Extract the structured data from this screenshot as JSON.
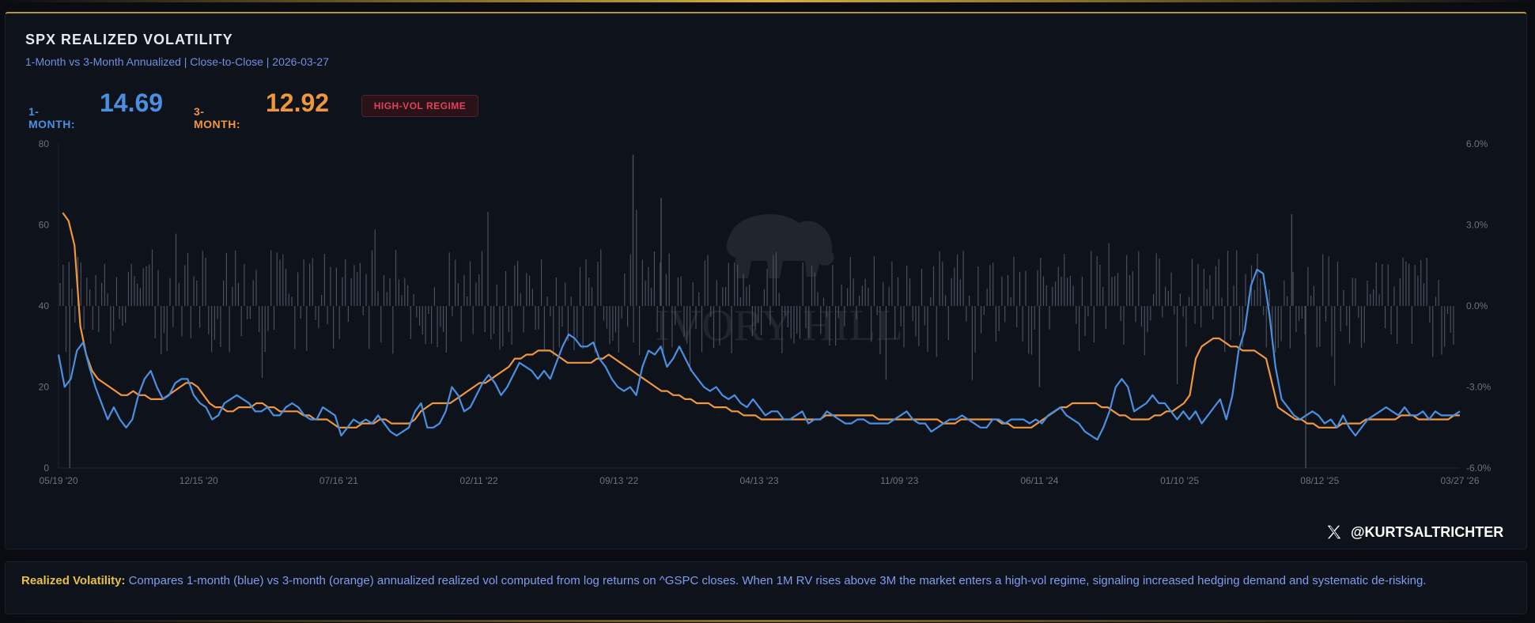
{
  "header": {
    "title": "SPX REALIZED VOLATILITY",
    "subtitle": "1-Month vs 3-Month Annualized | Close-to-Close | 2026-03-27"
  },
  "stats": {
    "one_month_label": "1-MONTH:",
    "one_month_value": "14.69",
    "three_month_label": "3-MONTH:",
    "three_month_value": "12.92",
    "regime_badge": "HIGH-VOL REGIME"
  },
  "watermark": {
    "text": "IVORY HILL"
  },
  "handle": {
    "text": "@KURTSALTRICHTER",
    "icon": "x-logo-icon"
  },
  "footer": {
    "lead": "Realized Volatility:",
    "text": "Compares 1-month (blue) vs 3-month (orange) annualized realized vol computed from log returns on ^GSPC closes. When 1M RV rises above 3M the market enters a high-vol regime, signaling increased hedging demand and systematic de-risking."
  },
  "colors": {
    "one_month": "#4a90e2",
    "three_month": "#f0963c",
    "badge": "#e0415c",
    "accent": "#e8c23a"
  },
  "chart_data": {
    "type": "line",
    "x_tick_labels": [
      "05/19 '20",
      "12/15 '20",
      "07/16 '21",
      "02/11 '22",
      "09/13 '22",
      "04/13 '23",
      "11/09 '23",
      "06/11 '24",
      "01/10 '25",
      "08/12 '25",
      "03/27 '26"
    ],
    "ylim": [
      0,
      80
    ],
    "y_ticks": [
      0,
      20,
      40,
      60,
      80
    ],
    "y2lim": [
      -6.0,
      6.0
    ],
    "y2_ticks": [
      "6.0%",
      "3.0%",
      "0.0%",
      "-3.0%",
      "-6.0%"
    ],
    "y2_tick_values": [
      6,
      3,
      0,
      -3,
      -6
    ],
    "grid": false,
    "series": [
      {
        "name": "1-MONTH",
        "color": "#4a90e2",
        "values": [
          28,
          20,
          22,
          29,
          31,
          25,
          20,
          16,
          12,
          15,
          12,
          10,
          12,
          18,
          22,
          24,
          20,
          17,
          18,
          21,
          22,
          22,
          18,
          16,
          15,
          12,
          13,
          16,
          17,
          18,
          17,
          16,
          14,
          14,
          15,
          13,
          13,
          15,
          16,
          15,
          13,
          12,
          12,
          15,
          14,
          13,
          8,
          10,
          12,
          11,
          12,
          11,
          13,
          11,
          9,
          8,
          9,
          10,
          14,
          16,
          10,
          10,
          11,
          14,
          20,
          18,
          14,
          15,
          18,
          21,
          23,
          21,
          18,
          20,
          23,
          26,
          25,
          24,
          22,
          24,
          22,
          26,
          30,
          33,
          32,
          30,
          30,
          31,
          27,
          25,
          22,
          20,
          19,
          20,
          18,
          25,
          29,
          28,
          30,
          25,
          27,
          30,
          27,
          24,
          22,
          20,
          19,
          20,
          18,
          17,
          18,
          16,
          15,
          17,
          15,
          13,
          14,
          14,
          12,
          12,
          13,
          14,
          11,
          12,
          12,
          14,
          13,
          12,
          11,
          11,
          12,
          12,
          11,
          11,
          11,
          11,
          12,
          13,
          14,
          12,
          11,
          11,
          9,
          10,
          11,
          12,
          12,
          13,
          12,
          11,
          10,
          10,
          12,
          12,
          11,
          12,
          12,
          12,
          11,
          12,
          11,
          13,
          14,
          15,
          13,
          12,
          11,
          9,
          8,
          7,
          10,
          14,
          20,
          22,
          20,
          14,
          15,
          16,
          18,
          16,
          16,
          14,
          12,
          14,
          12,
          14,
          11,
          13,
          15,
          17,
          12,
          18,
          29,
          34,
          45,
          49,
          48,
          38,
          25,
          17,
          15,
          13,
          12,
          13,
          14,
          13,
          11,
          12,
          10,
          13,
          10,
          8,
          10,
          12,
          13,
          14,
          15,
          14,
          13,
          15,
          13,
          13,
          14,
          12,
          14,
          13,
          13,
          13,
          14
        ],
        "x_start": 0,
        "x_end": 1
      },
      {
        "name": "3-MONTH",
        "color": "#f0963c",
        "values": [
          63,
          61,
          55,
          35,
          28,
          24,
          22,
          21,
          20,
          19,
          18,
          18,
          19,
          18,
          18,
          17,
          17,
          17,
          18,
          19,
          20,
          21,
          21,
          20,
          18,
          16,
          15,
          15,
          14,
          14,
          15,
          15,
          15,
          16,
          16,
          15,
          15,
          14,
          14,
          14,
          14,
          13,
          13,
          12,
          12,
          12,
          11,
          10,
          10,
          10,
          10,
          11,
          11,
          11,
          12,
          12,
          11,
          11,
          11,
          11,
          12,
          14,
          15,
          16,
          16,
          16,
          16,
          17,
          18,
          19,
          20,
          21,
          21,
          22,
          23,
          24,
          25,
          27,
          27,
          28,
          28,
          29,
          29,
          29,
          28,
          27,
          26,
          26,
          26,
          26,
          26,
          27,
          27,
          28,
          27,
          26,
          25,
          24,
          23,
          22,
          21,
          20,
          19,
          19,
          18,
          18,
          17,
          17,
          16,
          16,
          16,
          15,
          15,
          15,
          14,
          14,
          13,
          13,
          13,
          12,
          12,
          12,
          12,
          12,
          12,
          12,
          12,
          12,
          12,
          12,
          13,
          13,
          13,
          13,
          13,
          13,
          13,
          13,
          13,
          12,
          12,
          12,
          12,
          12,
          12,
          12,
          12,
          12,
          12,
          12,
          11,
          11,
          11,
          12,
          12,
          12,
          12,
          12,
          12,
          12,
          11,
          11,
          10,
          10,
          10,
          10,
          11,
          12,
          13,
          14,
          15,
          15,
          16,
          16,
          16,
          16,
          16,
          15,
          15,
          14,
          13,
          13,
          12,
          12,
          12,
          12,
          13,
          13,
          14,
          14,
          15,
          16,
          18,
          27,
          30,
          31,
          32,
          32,
          31,
          30,
          30,
          29,
          29,
          29,
          28,
          27,
          21,
          15,
          14,
          13,
          12,
          12,
          11,
          11,
          10,
          10,
          10,
          10,
          11,
          11,
          11,
          11,
          12,
          12,
          12,
          12,
          12,
          12,
          13,
          13,
          13,
          12,
          12,
          12,
          12,
          12,
          12,
          13,
          13
        ],
        "x_start": 0.003,
        "x_end": 1
      }
    ]
  }
}
